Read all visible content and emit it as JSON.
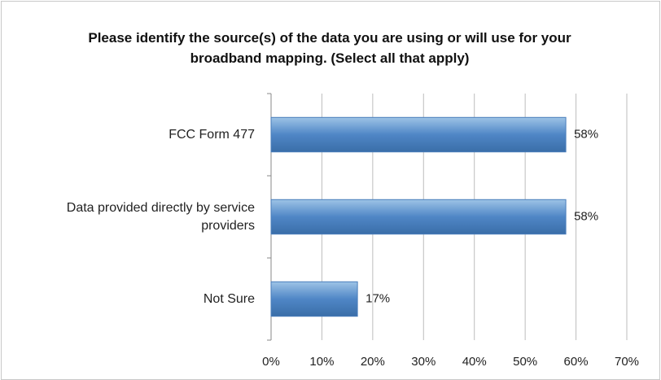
{
  "chart_data": {
    "type": "bar",
    "orientation": "horizontal",
    "title": "Please identify the source(s) of the data you are using or will use for your broadband mapping. (Select all that apply)",
    "categories": [
      "FCC Form 477",
      "Data provided directly by service providers",
      "Not Sure"
    ],
    "values": [
      58,
      58,
      17
    ],
    "value_labels": [
      "58%",
      "58%",
      "17%"
    ],
    "color": "#4a7ebb",
    "xlim": [
      0,
      70
    ],
    "xticks": [
      {
        "value": 0,
        "label": "0%"
      },
      {
        "value": 10,
        "label": "10%"
      },
      {
        "value": 20,
        "label": "20%"
      },
      {
        "value": 30,
        "label": "30%"
      },
      {
        "value": 40,
        "label": "40%"
      },
      {
        "value": 50,
        "label": "50%"
      },
      {
        "value": 60,
        "label": "60%"
      },
      {
        "value": 70,
        "label": "70%"
      }
    ],
    "grid": true
  }
}
